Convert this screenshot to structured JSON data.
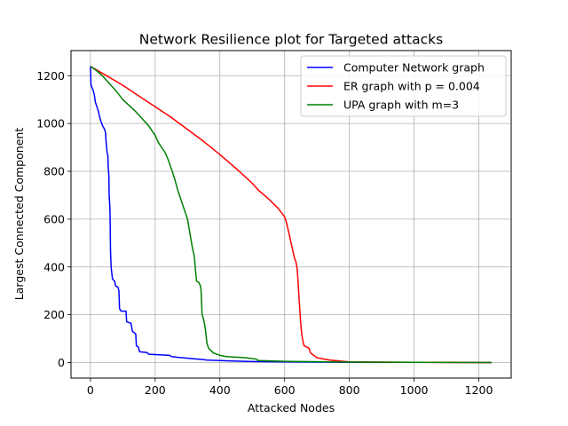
{
  "chart_data": {
    "type": "line",
    "title": "Network Resilience plot for Targeted attacks",
    "xlabel": "Attacked Nodes",
    "ylabel": "Largest Connected Component",
    "xlim": [
      -60,
      1300
    ],
    "ylim": [
      -65,
      1305
    ],
    "xticks": [
      0,
      200,
      400,
      600,
      800,
      1000,
      1200
    ],
    "yticks": [
      0,
      200,
      400,
      600,
      800,
      1000,
      1200
    ],
    "grid": true,
    "legend_position": "top-right",
    "series": [
      {
        "name": "Computer Network graph",
        "color": "#0000ff",
        "points": [
          [
            0,
            1239
          ],
          [
            1,
            1200
          ],
          [
            2,
            1160
          ],
          [
            8,
            1140
          ],
          [
            12,
            1120
          ],
          [
            15,
            1090
          ],
          [
            20,
            1070
          ],
          [
            25,
            1050
          ],
          [
            28,
            1030
          ],
          [
            32,
            1010
          ],
          [
            38,
            990
          ],
          [
            44,
            975
          ],
          [
            47,
            960
          ],
          [
            48,
            930
          ],
          [
            50,
            900
          ],
          [
            52,
            875
          ],
          [
            54,
            865
          ],
          [
            55,
            820
          ],
          [
            57,
            780
          ],
          [
            58,
            700
          ],
          [
            60,
            650
          ],
          [
            61,
            600
          ],
          [
            62,
            470
          ],
          [
            64,
            400
          ],
          [
            68,
            350
          ],
          [
            75,
            340
          ],
          [
            78,
            320
          ],
          [
            85,
            315
          ],
          [
            88,
            300
          ],
          [
            90,
            225
          ],
          [
            95,
            215
          ],
          [
            110,
            215
          ],
          [
            112,
            170
          ],
          [
            125,
            165
          ],
          [
            130,
            130
          ],
          [
            140,
            120
          ],
          [
            142,
            70
          ],
          [
            148,
            65
          ],
          [
            152,
            45
          ],
          [
            175,
            42
          ],
          [
            180,
            35
          ],
          [
            245,
            30
          ],
          [
            250,
            25
          ],
          [
            270,
            22
          ],
          [
            300,
            18
          ],
          [
            350,
            12
          ],
          [
            360,
            10
          ],
          [
            450,
            6
          ],
          [
            500,
            4
          ],
          [
            600,
            3
          ],
          [
            800,
            1
          ],
          [
            1000,
            1
          ],
          [
            1239,
            0
          ]
        ]
      },
      {
        "name": "ER graph with p = 0.004",
        "color": "#ff0000",
        "points": [
          [
            0,
            1239
          ],
          [
            50,
            1200
          ],
          [
            100,
            1160
          ],
          [
            150,
            1115
          ],
          [
            200,
            1070
          ],
          [
            250,
            1025
          ],
          [
            300,
            975
          ],
          [
            350,
            925
          ],
          [
            400,
            870
          ],
          [
            430,
            835
          ],
          [
            460,
            800
          ],
          [
            480,
            775
          ],
          [
            500,
            750
          ],
          [
            520,
            720
          ],
          [
            550,
            685
          ],
          [
            580,
            645
          ],
          [
            600,
            610
          ],
          [
            605,
            590
          ],
          [
            610,
            560
          ],
          [
            615,
            530
          ],
          [
            620,
            500
          ],
          [
            625,
            470
          ],
          [
            630,
            440
          ],
          [
            635,
            420
          ],
          [
            638,
            400
          ],
          [
            640,
            370
          ],
          [
            642,
            330
          ],
          [
            645,
            260
          ],
          [
            648,
            200
          ],
          [
            650,
            160
          ],
          [
            653,
            120
          ],
          [
            655,
            100
          ],
          [
            658,
            80
          ],
          [
            660,
            70
          ],
          [
            675,
            60
          ],
          [
            680,
            40
          ],
          [
            690,
            30
          ],
          [
            700,
            20
          ],
          [
            720,
            15
          ],
          [
            740,
            10
          ],
          [
            800,
            3
          ],
          [
            1000,
            1
          ],
          [
            1239,
            0
          ]
        ]
      },
      {
        "name": "UPA graph with m=3",
        "color": "#008000",
        "points": [
          [
            0,
            1239
          ],
          [
            20,
            1220
          ],
          [
            40,
            1195
          ],
          [
            60,
            1165
          ],
          [
            80,
            1135
          ],
          [
            100,
            1100
          ],
          [
            120,
            1075
          ],
          [
            140,
            1050
          ],
          [
            160,
            1020
          ],
          [
            180,
            990
          ],
          [
            200,
            950
          ],
          [
            210,
            920
          ],
          [
            220,
            900
          ],
          [
            230,
            880
          ],
          [
            240,
            850
          ],
          [
            250,
            810
          ],
          [
            260,
            770
          ],
          [
            270,
            720
          ],
          [
            280,
            680
          ],
          [
            290,
            640
          ],
          [
            295,
            620
          ],
          [
            300,
            600
          ],
          [
            305,
            560
          ],
          [
            310,
            520
          ],
          [
            315,
            480
          ],
          [
            320,
            450
          ],
          [
            322,
            430
          ],
          [
            325,
            380
          ],
          [
            328,
            340
          ],
          [
            335,
            335
          ],
          [
            340,
            320
          ],
          [
            342,
            300
          ],
          [
            345,
            200
          ],
          [
            350,
            180
          ],
          [
            355,
            140
          ],
          [
            360,
            80
          ],
          [
            365,
            60
          ],
          [
            380,
            40
          ],
          [
            400,
            30
          ],
          [
            420,
            25
          ],
          [
            460,
            22
          ],
          [
            480,
            20
          ],
          [
            510,
            15
          ],
          [
            520,
            8
          ],
          [
            600,
            5
          ],
          [
            800,
            2
          ],
          [
            1000,
            1
          ],
          [
            1239,
            0
          ]
        ]
      }
    ]
  }
}
